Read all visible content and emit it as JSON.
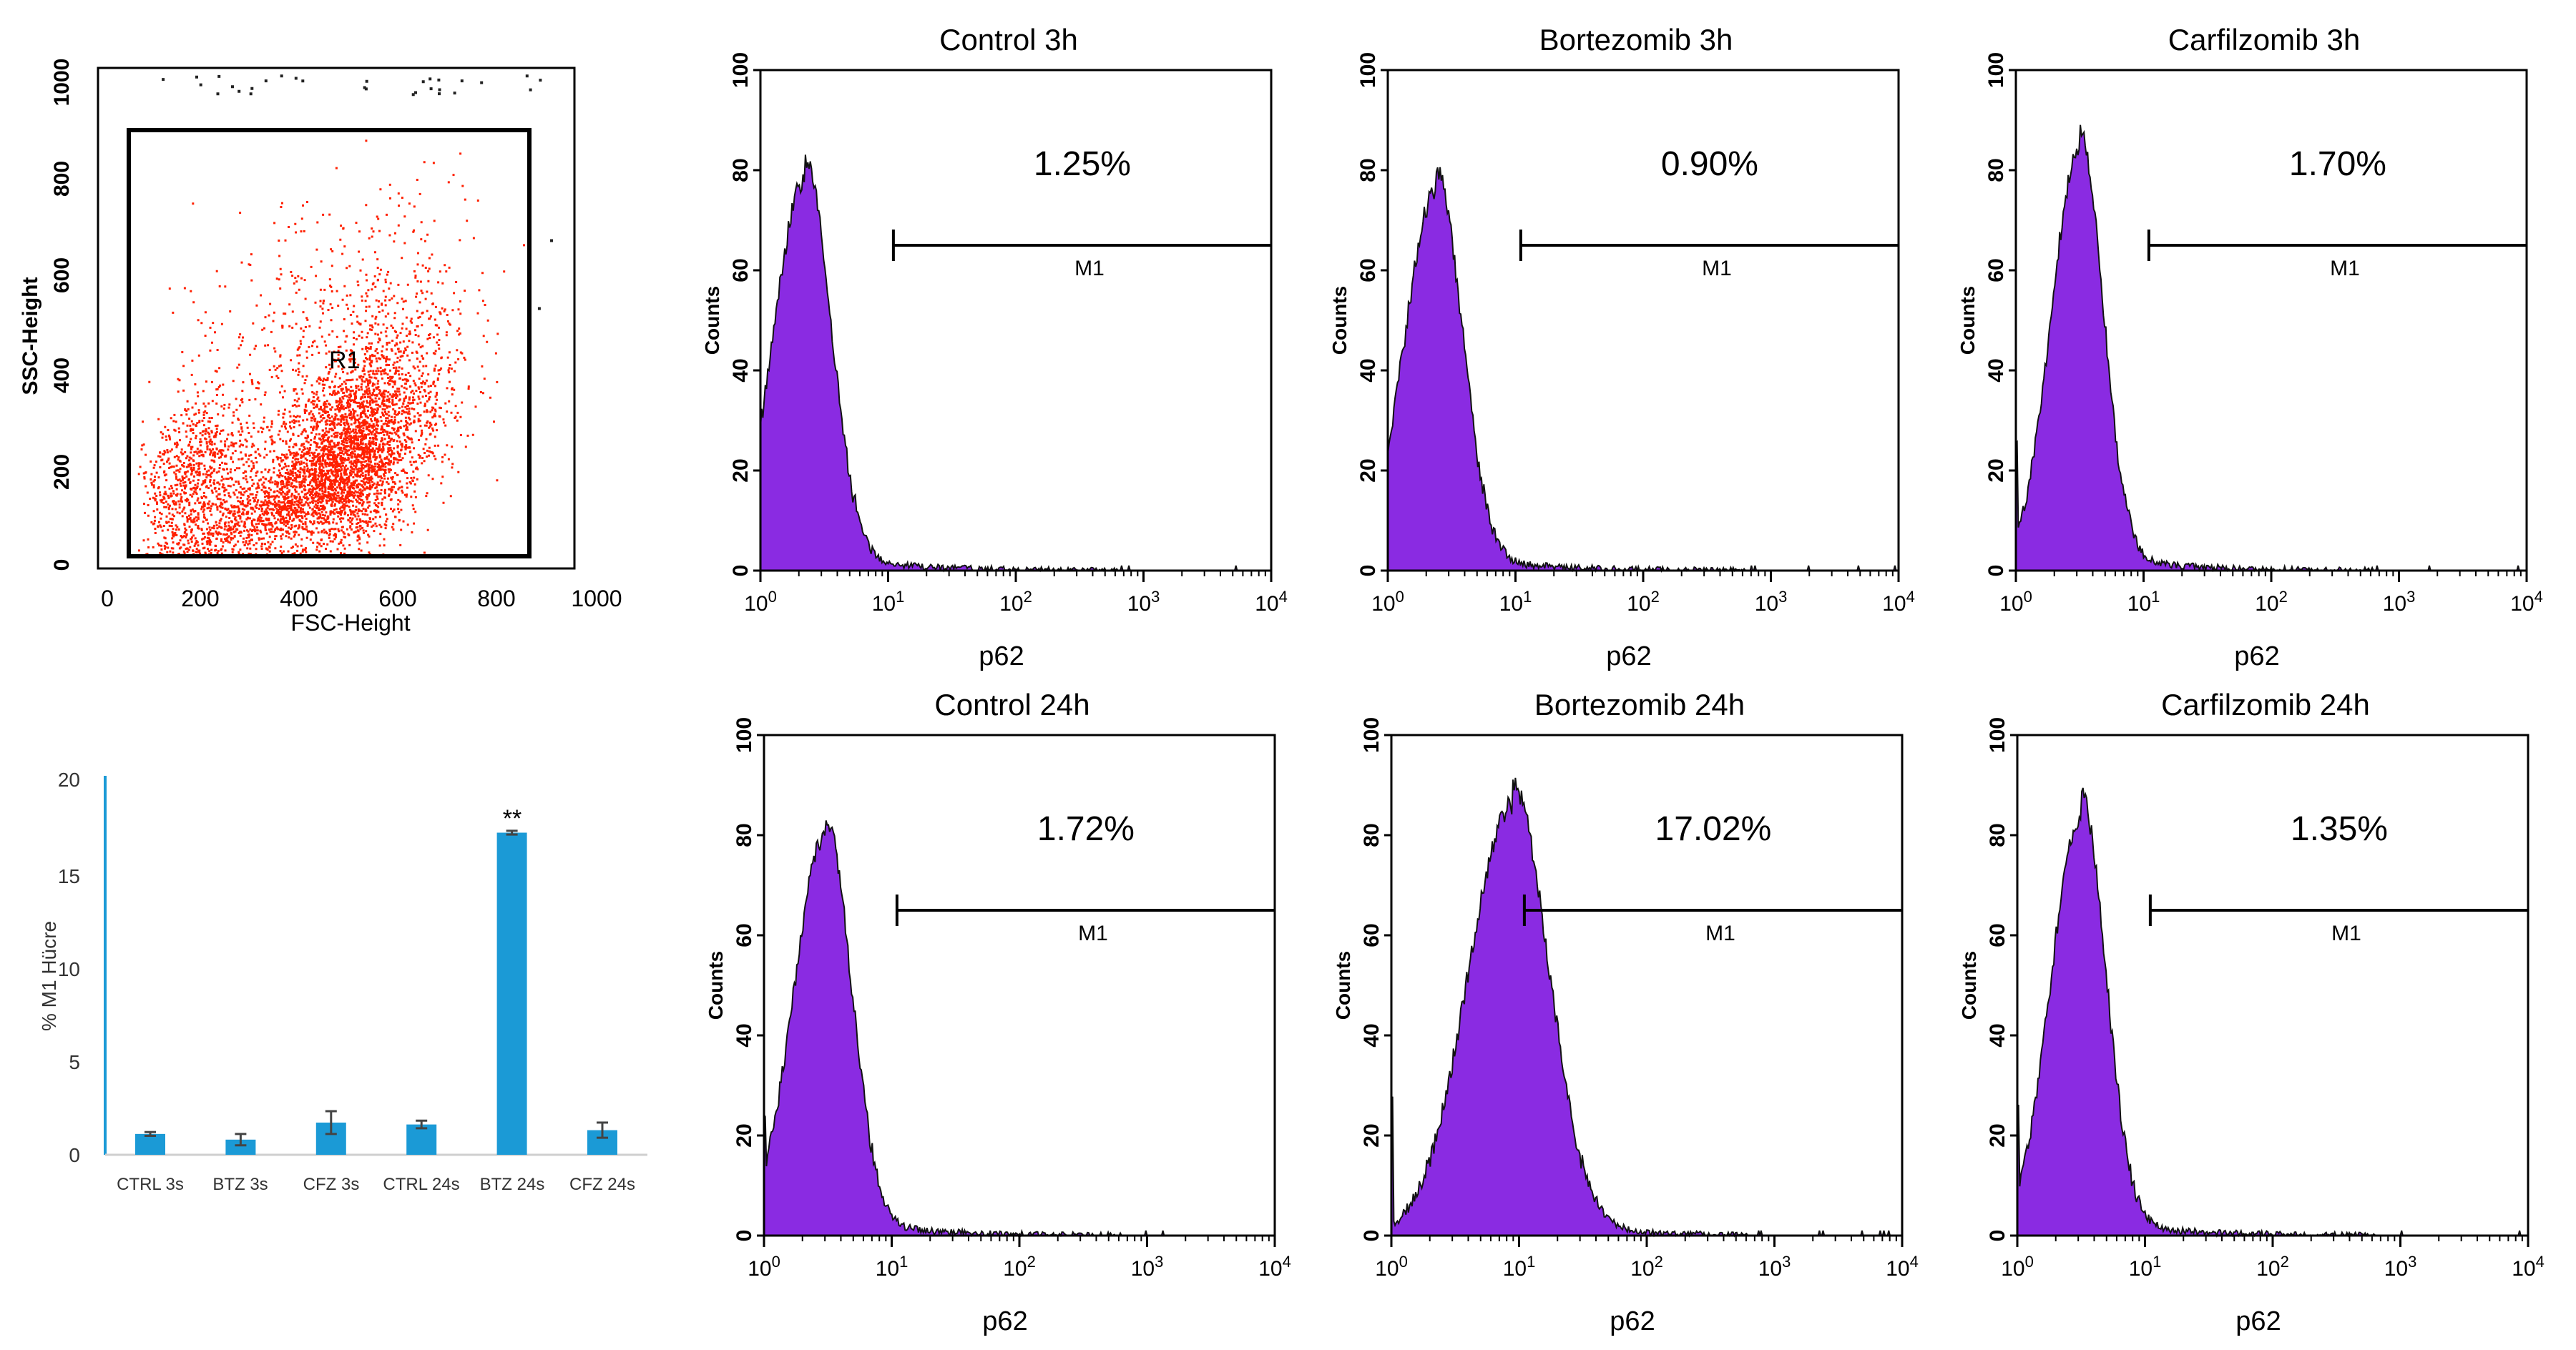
{
  "colors": {
    "hist_fill": "#8a2be2",
    "hist_edge": "#111111",
    "scatter_dot": "#ff2000",
    "bar_fill": "#1b9ad6",
    "axis_bar": "#1b9ad6"
  },
  "chart_data": [
    {
      "id": "scatter",
      "type": "scatter",
      "title": "",
      "xlabel": "FSC-Height",
      "ylabel": "SSC-Height",
      "xlim": [
        0,
        1000
      ],
      "ylim": [
        0,
        1000
      ],
      "xticks": [
        "0",
        "200",
        "400",
        "600",
        "800",
        "1000"
      ],
      "yticks": [
        "0",
        "200",
        "400",
        "600",
        "800",
        "1000"
      ],
      "gate_label": "R1",
      "gate": {
        "x": [
          60,
          860
        ],
        "y": [
          20,
          900
        ]
      },
      "clusters": [
        {
          "cx": 480,
          "cy": 200,
          "sx": 80,
          "sy": 90,
          "n": 2600
        },
        {
          "cx": 560,
          "cy": 330,
          "sx": 90,
          "sy": 130,
          "n": 900
        },
        {
          "cx": 180,
          "cy": 170,
          "sx": 60,
          "sy": 80,
          "n": 800
        },
        {
          "cx": 300,
          "cy": 90,
          "sx": 110,
          "sy": 45,
          "n": 900
        },
        {
          "cx": 400,
          "cy": 450,
          "sx": 170,
          "sy": 160,
          "n": 450
        }
      ]
    },
    {
      "id": "bar",
      "type": "bar",
      "title": "",
      "xlabel": "",
      "ylabel": "% M1 Hücre",
      "ylim": [
        0,
        20
      ],
      "yticks": [
        "0",
        "5",
        "10",
        "15",
        "20"
      ],
      "categories": [
        "CTRL 3s",
        "BTZ 3s",
        "CFZ 3s",
        "CTRL 24s",
        "BTZ 24s",
        "CFZ 24s"
      ],
      "values": [
        1.1,
        0.8,
        1.7,
        1.6,
        17.0,
        1.3
      ],
      "errors": [
        0.1,
        0.3,
        0.6,
        0.2,
        0.1,
        0.4
      ],
      "annotations": [
        {
          "index": 4,
          "text": "**"
        }
      ]
    },
    {
      "id": "h1",
      "type": "area",
      "title": "Control 3h",
      "xlabel": "p62",
      "ylabel": "Counts",
      "xscale": "log",
      "xlim": [
        1,
        10000
      ],
      "ylim": [
        0,
        100
      ],
      "yticks": [
        "0",
        "20",
        "40",
        "60",
        "80",
        "100"
      ],
      "xtick_exponents": [
        "0",
        "1",
        "2",
        "3",
        "4"
      ],
      "xtick_base": "10",
      "percent": "1.25%",
      "marker": "M1",
      "marker_range": [
        11,
        10000
      ],
      "peak_log": 0.35,
      "peak_count": 78,
      "width": 0.2
    },
    {
      "id": "h2",
      "type": "area",
      "title": "Bortezomib 3h",
      "xlabel": "p62",
      "ylabel": "Counts",
      "xscale": "log",
      "xlim": [
        1,
        10000
      ],
      "ylim": [
        0,
        100
      ],
      "yticks": [
        "0",
        "20",
        "40",
        "60",
        "80",
        "100"
      ],
      "xtick_exponents": [
        "0",
        "1",
        "2",
        "3",
        "4"
      ],
      "xtick_base": "10",
      "percent": "0.90%",
      "marker": "M1",
      "marker_range": [
        11,
        10000
      ],
      "peak_log": 0.38,
      "peak_count": 76,
      "width": 0.2
    },
    {
      "id": "h3",
      "type": "area",
      "title": "Carfilzomib 3h",
      "xlabel": "p62",
      "ylabel": "Counts",
      "xscale": "log",
      "xlim": [
        1,
        10000
      ],
      "ylim": [
        0,
        100
      ],
      "yticks": [
        "0",
        "20",
        "40",
        "60",
        "80",
        "100"
      ],
      "xtick_exponents": [
        "0",
        "1",
        "2",
        "3",
        "4"
      ],
      "xtick_base": "10",
      "percent": "1.70%",
      "marker": "M1",
      "marker_range": [
        11,
        10000
      ],
      "peak_log": 0.5,
      "peak_count": 84,
      "width": 0.18
    },
    {
      "id": "h4",
      "type": "area",
      "title": "Control 24h",
      "xlabel": "p62",
      "ylabel": "Counts",
      "xscale": "log",
      "xlim": [
        1,
        10000
      ],
      "ylim": [
        0,
        100
      ],
      "yticks": [
        "0",
        "20",
        "40",
        "60",
        "80",
        "100"
      ],
      "xtick_exponents": [
        "0",
        "1",
        "2",
        "3",
        "4"
      ],
      "xtick_base": "10",
      "percent": "1.72%",
      "marker": "M1",
      "marker_range": [
        11,
        10000
      ],
      "peak_log": 0.48,
      "peak_count": 80,
      "width": 0.2
    },
    {
      "id": "h5",
      "type": "area",
      "title": "Bortezomib 24h",
      "xlabel": "p62",
      "ylabel": "Counts",
      "xscale": "log",
      "xlim": [
        1,
        10000
      ],
      "ylim": [
        0,
        100
      ],
      "yticks": [
        "0",
        "20",
        "40",
        "60",
        "80",
        "100"
      ],
      "xtick_exponents": [
        "0",
        "1",
        "2",
        "3",
        "4"
      ],
      "xtick_base": "10",
      "percent": "17.02%",
      "marker": "M1",
      "marker_range": [
        11,
        10000
      ],
      "peak_log": 0.95,
      "peak_count": 86,
      "width": 0.28
    },
    {
      "id": "h6",
      "type": "area",
      "title": "Carfilzomib 24h",
      "xlabel": "p62",
      "ylabel": "Counts",
      "xscale": "log",
      "xlim": [
        1,
        10000
      ],
      "ylim": [
        0,
        100
      ],
      "yticks": [
        "0",
        "20",
        "40",
        "60",
        "80",
        "100"
      ],
      "xtick_exponents": [
        "0",
        "1",
        "2",
        "3",
        "4"
      ],
      "xtick_base": "10",
      "percent": "1.35%",
      "marker": "M1",
      "marker_range": [
        11,
        10000
      ],
      "peak_log": 0.5,
      "peak_count": 84,
      "width": 0.19
    }
  ]
}
